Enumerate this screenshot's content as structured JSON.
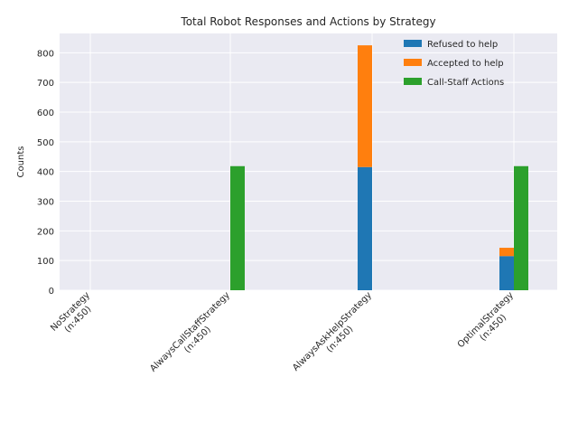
{
  "chart_data": {
    "type": "bar",
    "stacked_partial": true,
    "title": "Total Robot Responses and Actions by Strategy",
    "ylabel": "Counts",
    "xlabel": "",
    "ylim": [
      0,
      865
    ],
    "yticks": [
      0,
      100,
      200,
      300,
      400,
      500,
      600,
      700,
      800
    ],
    "grid": true,
    "legend_position": "top-right",
    "categories": [
      "NoStrategy\n(n:450)",
      "AlwaysCallStaffStrategy\n(n:450)",
      "AlwaysAskHelpStrategy\n(n:450)",
      "OptimalStrategy\n(n:450)"
    ],
    "series": [
      {
        "name": "Refused to help",
        "color": "#1f77b4",
        "values": [
          0,
          0,
          415,
          115
        ],
        "stack": "help",
        "offset": -1
      },
      {
        "name": "Accepted to help",
        "color": "#ff7f0e",
        "values": [
          0,
          0,
          410,
          28
        ],
        "stack": "help",
        "offset": -1
      },
      {
        "name": "Call-Staff Actions",
        "color": "#2ca02c",
        "values": [
          0,
          418,
          0,
          418
        ],
        "stack": "staff",
        "offset": 1
      }
    ],
    "colors": {
      "plot_background": "#eaeaf2",
      "grid": "#ffffff",
      "text": "#262626"
    }
  }
}
